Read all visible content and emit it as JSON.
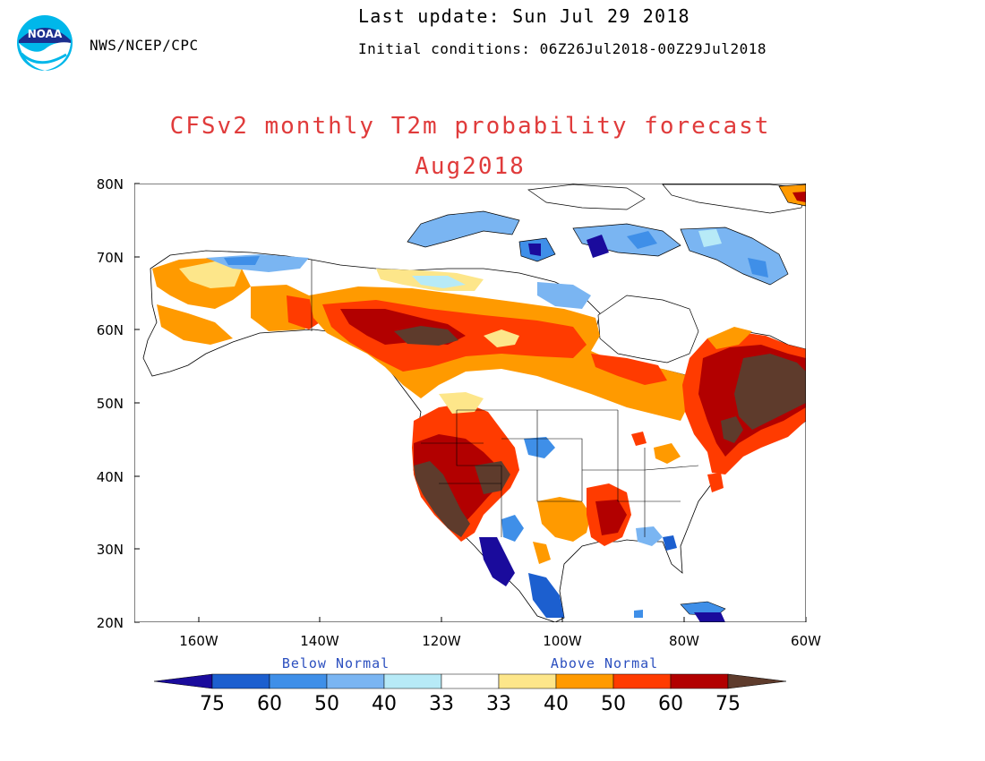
{
  "header": {
    "agency": "NWS/NCEP/CPC",
    "last_update": "Last update: Sun Jul 29 2018",
    "initial_conditions": "Initial conditions: 06Z26Jul2018-00Z29Jul2018",
    "logo_text": "NOAA"
  },
  "title": {
    "line1": "CFSv2 monthly T2m probability forecast",
    "line2": "Aug2018"
  },
  "axes": {
    "lon_labels": [
      "160W",
      "140W",
      "120W",
      "100W",
      "80W",
      "60W"
    ],
    "lat_labels": [
      "80N",
      "70N",
      "60N",
      "50N",
      "40N",
      "30N",
      "20N"
    ]
  },
  "colorbar": {
    "below_label": "Below Normal",
    "above_label": "Above Normal",
    "tick_labels": [
      "75",
      "60",
      "50",
      "40",
      "33",
      "33",
      "40",
      "50",
      "60",
      "75"
    ],
    "colors": [
      "#1a0b9c",
      "#1c5fcf",
      "#3f8fe8",
      "#7ab5f2",
      "#b7eaf7",
      "#ffffff",
      "#fde68a",
      "#ff9a00",
      "#ff3b00",
      "#b20000",
      "#5e3b2c"
    ]
  },
  "colors": {
    "title": "#e03b3b",
    "label": "#2b4fbf",
    "border": "#000000"
  }
}
